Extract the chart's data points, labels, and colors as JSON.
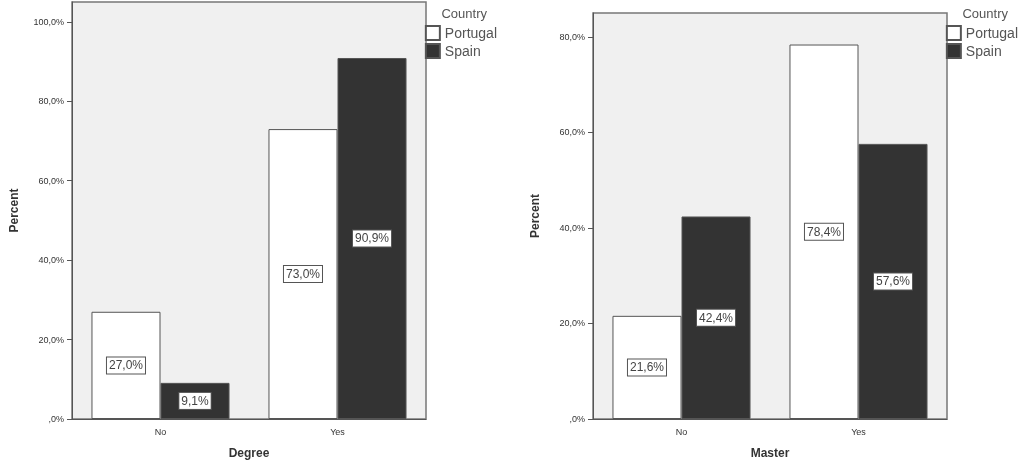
{
  "chart_data": [
    {
      "type": "bar",
      "xlabel": "Degree",
      "ylabel": "Percent",
      "legend_title": "Country",
      "categories": [
        "No",
        "Yes"
      ],
      "series": [
        {
          "name": "Portugal",
          "color": "#ffffff",
          "values": [
            27.0,
            73.0
          ],
          "value_labels": [
            "27,0%",
            "73,0%"
          ]
        },
        {
          "name": "Spain",
          "color": "#333333",
          "values": [
            9.1,
            90.9
          ],
          "value_labels": [
            "9,1%",
            "90,9%"
          ]
        }
      ],
      "ylim": [
        0,
        105
      ],
      "yticks": [
        {
          "value": 0,
          "label": ",0%"
        },
        {
          "value": 20,
          "label": "20,0%"
        },
        {
          "value": 40,
          "label": "40,0%"
        },
        {
          "value": 60,
          "label": "60,0%"
        },
        {
          "value": 80,
          "label": "80,0%"
        },
        {
          "value": 100,
          "label": "100,0%"
        }
      ],
      "grid": false,
      "legend": "top right"
    },
    {
      "type": "bar",
      "xlabel": "Master",
      "ylabel": "Percent",
      "legend_title": "Country",
      "categories": [
        "No",
        "Yes"
      ],
      "series": [
        {
          "name": "Portugal",
          "color": "#ffffff",
          "values": [
            21.6,
            78.4
          ],
          "value_labels": [
            "21,6%",
            "78,4%"
          ]
        },
        {
          "name": "Spain",
          "color": "#333333",
          "values": [
            42.4,
            57.6
          ],
          "value_labels": [
            "42,4%",
            "57,6%"
          ]
        }
      ],
      "ylim": [
        0,
        85
      ],
      "yticks": [
        {
          "value": 0,
          "label": ",0%"
        },
        {
          "value": 20,
          "label": "20,0%"
        },
        {
          "value": 40,
          "label": "40,0%"
        },
        {
          "value": 60,
          "label": "60,0%"
        },
        {
          "value": 80,
          "label": "80,0%"
        }
      ],
      "grid": false,
      "legend": "top right"
    }
  ]
}
